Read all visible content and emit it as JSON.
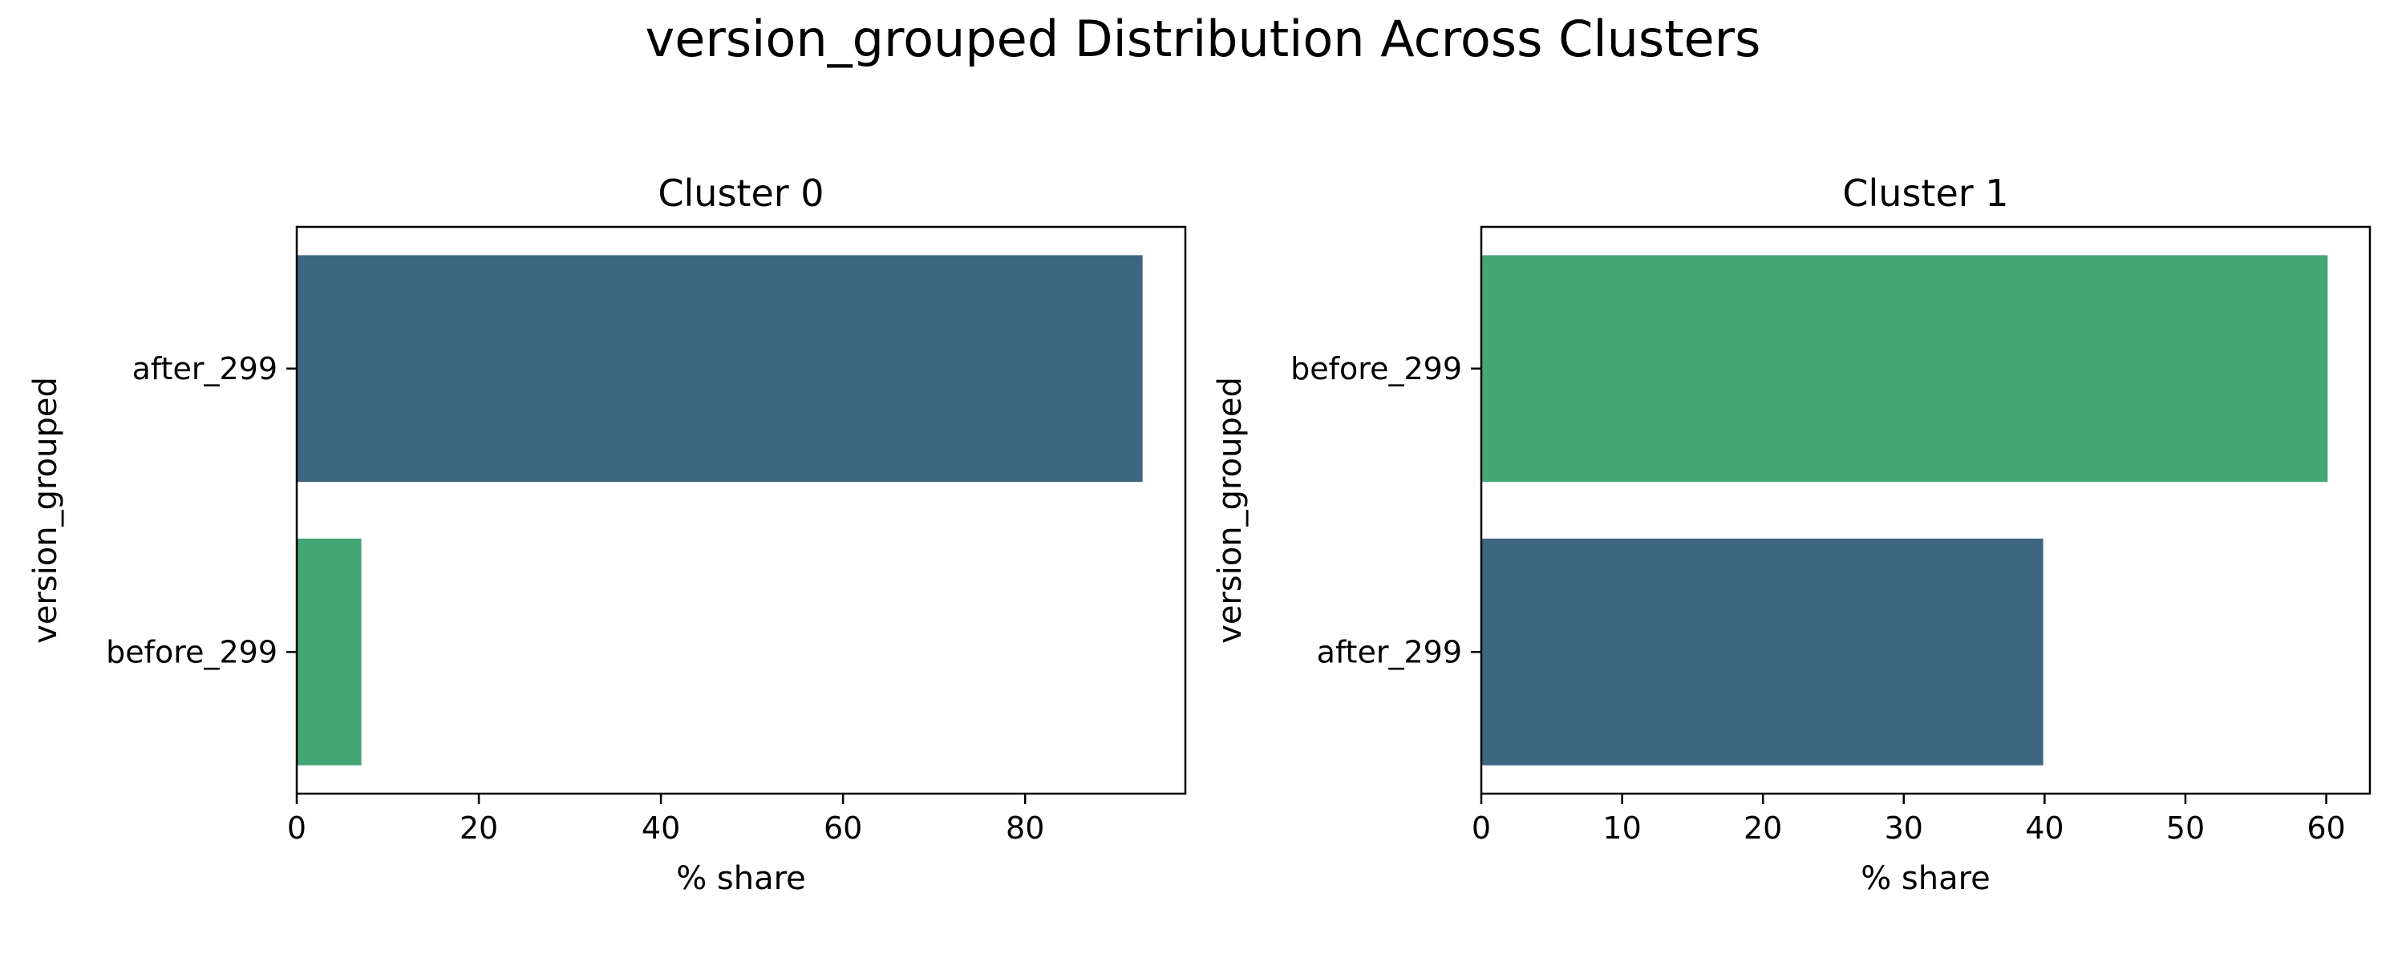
{
  "figure": {
    "title": "version_grouped Distribution Across Clusters"
  },
  "chart_data": [
    {
      "type": "bar",
      "orientation": "horizontal",
      "title": "Cluster 0",
      "xlabel": "% share",
      "ylabel": "version_grouped",
      "categories": [
        "after_299",
        "before_299"
      ],
      "values": [
        92.9,
        7.1
      ],
      "colors": [
        "#3e6680",
        "#45a776"
      ],
      "xlim": [
        0,
        97.6
      ],
      "xticks": [
        0,
        20,
        40,
        60,
        80
      ],
      "grid": false,
      "legend": "none"
    },
    {
      "type": "bar",
      "orientation": "horizontal",
      "title": "Cluster 1",
      "xlabel": "% share",
      "ylabel": "version_grouped",
      "categories": [
        "before_299",
        "after_299"
      ],
      "values": [
        60.1,
        39.9
      ],
      "colors": [
        "#45a776",
        "#3e6680"
      ],
      "xlim": [
        0,
        63.1
      ],
      "xticks": [
        0,
        10,
        20,
        30,
        40,
        50,
        60
      ],
      "grid": false,
      "legend": "none"
    }
  ]
}
